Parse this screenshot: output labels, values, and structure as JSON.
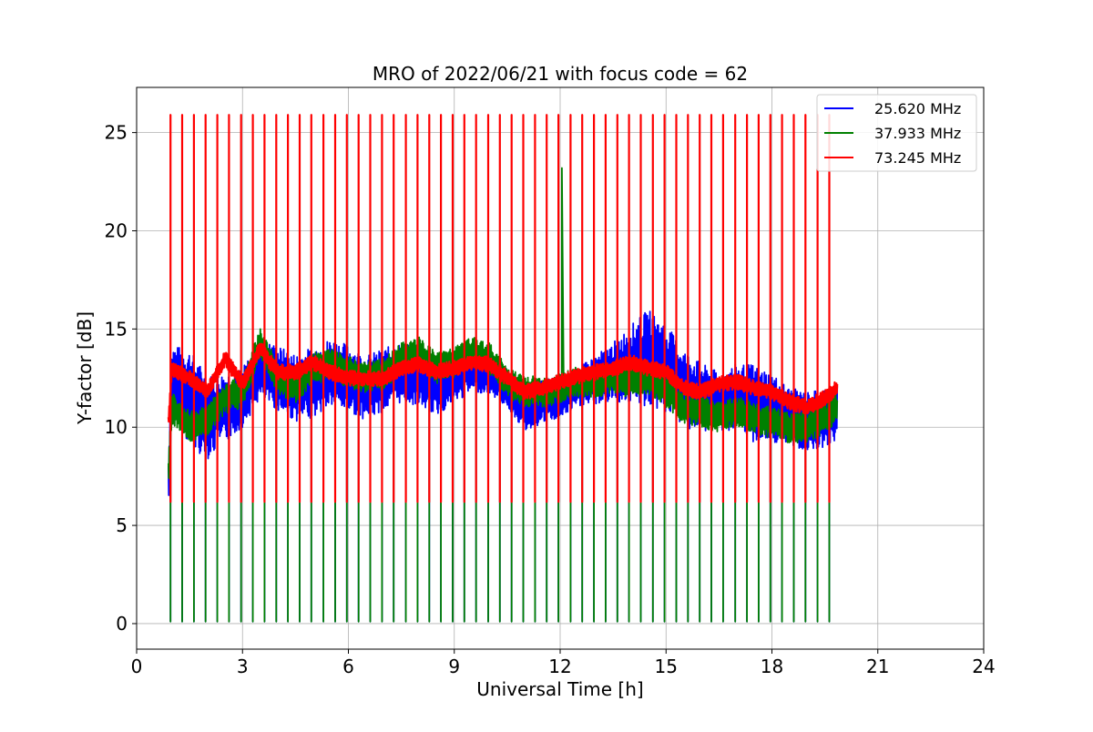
{
  "chart_data": {
    "type": "line",
    "title": "MRO of 2022/06/21 with focus code = 62",
    "xlabel": "Universal Time [h]",
    "ylabel": "Y-factor [dB]",
    "xlim": [
      0,
      24
    ],
    "ylim": [
      -1.3,
      27.3
    ],
    "xticks": [
      0,
      3,
      6,
      9,
      12,
      15,
      18,
      21,
      24
    ],
    "yticks": [
      0,
      5,
      10,
      15,
      20,
      25
    ],
    "grid": true,
    "legend_position": "top-right",
    "x_start": 0.9,
    "x_end": 19.85,
    "series": [
      {
        "name": "25.620 MHz",
        "color": "#0000ff",
        "baseline": [
          [
            0.9,
            7.0
          ],
          [
            1.0,
            12.5
          ],
          [
            1.5,
            11.5
          ],
          [
            2.0,
            10.5
          ],
          [
            2.5,
            11.0
          ],
          [
            3.0,
            11.5
          ],
          [
            3.5,
            13.0
          ],
          [
            4.0,
            12.5
          ],
          [
            4.5,
            12.0
          ],
          [
            5.0,
            12.3
          ],
          [
            5.5,
            12.8
          ],
          [
            6.0,
            12.5
          ],
          [
            6.5,
            12.0
          ],
          [
            7.0,
            12.4
          ],
          [
            7.5,
            12.8
          ],
          [
            8.0,
            12.6
          ],
          [
            8.5,
            12.0
          ],
          [
            9.0,
            12.5
          ],
          [
            9.5,
            13.0
          ],
          [
            10.0,
            12.8
          ],
          [
            10.5,
            12.0
          ],
          [
            11.0,
            11.0
          ],
          [
            11.5,
            11.3
          ],
          [
            12.0,
            11.5
          ],
          [
            12.5,
            12.0
          ],
          [
            13.0,
            12.4
          ],
          [
            13.5,
            12.8
          ],
          [
            14.0,
            13.2
          ],
          [
            14.5,
            13.5
          ],
          [
            15.0,
            13.0
          ],
          [
            15.5,
            12.0
          ],
          [
            16.0,
            11.5
          ],
          [
            16.5,
            11.3
          ],
          [
            17.0,
            11.5
          ],
          [
            17.5,
            11.2
          ],
          [
            18.0,
            11.0
          ],
          [
            18.5,
            10.5
          ],
          [
            19.0,
            10.3
          ],
          [
            19.5,
            10.5
          ],
          [
            19.85,
            10.8
          ]
        ],
        "band": [
          [
            0.9,
            1.5
          ],
          [
            1.5,
            2.5
          ],
          [
            2.5,
            1.8
          ],
          [
            3.0,
            1.5
          ],
          [
            5.0,
            1.8
          ],
          [
            8.0,
            1.5
          ],
          [
            10.5,
            1.0
          ],
          [
            11.0,
            1.2
          ],
          [
            12.5,
            1.0
          ],
          [
            13.5,
            1.5
          ],
          [
            14.5,
            2.5
          ],
          [
            15.5,
            2.0
          ],
          [
            16.5,
            1.5
          ],
          [
            17.5,
            2.0
          ],
          [
            18.5,
            1.5
          ],
          [
            19.85,
            1.5
          ]
        ],
        "dip_low": 0.1
      },
      {
        "name": "37.933 MHz",
        "color": "#008000",
        "baseline": [
          [
            0.9,
            7.5
          ],
          [
            1.0,
            11.0
          ],
          [
            1.5,
            10.0
          ],
          [
            2.0,
            10.3
          ],
          [
            2.5,
            11.5
          ],
          [
            3.0,
            11.8
          ],
          [
            3.5,
            14.3
          ],
          [
            4.0,
            12.5
          ],
          [
            4.5,
            12.0
          ],
          [
            5.0,
            13.0
          ],
          [
            5.5,
            13.2
          ],
          [
            6.0,
            12.8
          ],
          [
            6.5,
            12.5
          ],
          [
            7.0,
            12.7
          ],
          [
            7.5,
            13.5
          ],
          [
            8.0,
            13.8
          ],
          [
            8.5,
            13.0
          ],
          [
            9.0,
            13.3
          ],
          [
            9.5,
            13.8
          ],
          [
            10.0,
            13.5
          ],
          [
            10.5,
            12.3
          ],
          [
            11.0,
            11.8
          ],
          [
            11.5,
            11.8
          ],
          [
            12.0,
            12.0
          ],
          [
            12.5,
            12.3
          ],
          [
            13.0,
            12.3
          ],
          [
            13.5,
            12.5
          ],
          [
            14.0,
            12.3
          ],
          [
            14.5,
            12.5
          ],
          [
            15.0,
            11.8
          ],
          [
            15.5,
            11.0
          ],
          [
            16.0,
            10.8
          ],
          [
            16.5,
            10.5
          ],
          [
            17.0,
            10.8
          ],
          [
            17.5,
            10.5
          ],
          [
            18.0,
            10.2
          ],
          [
            18.5,
            10.0
          ],
          [
            19.0,
            10.0
          ],
          [
            19.5,
            10.5
          ],
          [
            19.85,
            11.0
          ]
        ],
        "band": [
          [
            0.9,
            0.8
          ],
          [
            5.0,
            0.8
          ],
          [
            10.0,
            0.8
          ],
          [
            15.0,
            0.8
          ],
          [
            19.85,
            0.8
          ]
        ],
        "dip_low": 0.1,
        "spike": {
          "x": 12.05,
          "y": 23.2
        }
      },
      {
        "name": "73.245 MHz",
        "color": "#ff0000",
        "baseline": [
          [
            0.9,
            10.2
          ],
          [
            1.0,
            13.0
          ],
          [
            1.5,
            12.5
          ],
          [
            2.0,
            11.8
          ],
          [
            2.5,
            13.5
          ],
          [
            3.0,
            12.2
          ],
          [
            3.5,
            14.0
          ],
          [
            4.0,
            12.8
          ],
          [
            4.5,
            12.8
          ],
          [
            5.0,
            13.3
          ],
          [
            5.5,
            12.8
          ],
          [
            6.0,
            12.5
          ],
          [
            6.5,
            12.5
          ],
          [
            7.0,
            12.5
          ],
          [
            7.5,
            13.0
          ],
          [
            8.0,
            13.2
          ],
          [
            8.5,
            12.8
          ],
          [
            9.0,
            13.0
          ],
          [
            9.5,
            13.3
          ],
          [
            10.0,
            13.2
          ],
          [
            10.5,
            12.5
          ],
          [
            11.0,
            11.8
          ],
          [
            11.5,
            12.0
          ],
          [
            12.0,
            12.3
          ],
          [
            12.5,
            12.6
          ],
          [
            13.0,
            12.8
          ],
          [
            13.5,
            13.0
          ],
          [
            14.0,
            13.3
          ],
          [
            14.5,
            13.0
          ],
          [
            15.0,
            12.8
          ],
          [
            15.5,
            12.0
          ],
          [
            16.0,
            11.8
          ],
          [
            16.5,
            12.2
          ],
          [
            17.0,
            12.3
          ],
          [
            17.5,
            12.0
          ],
          [
            18.0,
            11.8
          ],
          [
            18.5,
            11.3
          ],
          [
            19.0,
            11.0
          ],
          [
            19.5,
            11.5
          ],
          [
            19.85,
            12.0
          ]
        ],
        "band": [
          [
            0.9,
            0.4
          ],
          [
            19.85,
            0.4
          ]
        ],
        "spike_high": 25.9,
        "dip_low": 6.2
      }
    ],
    "cycle_period_h": 0.3333
  }
}
